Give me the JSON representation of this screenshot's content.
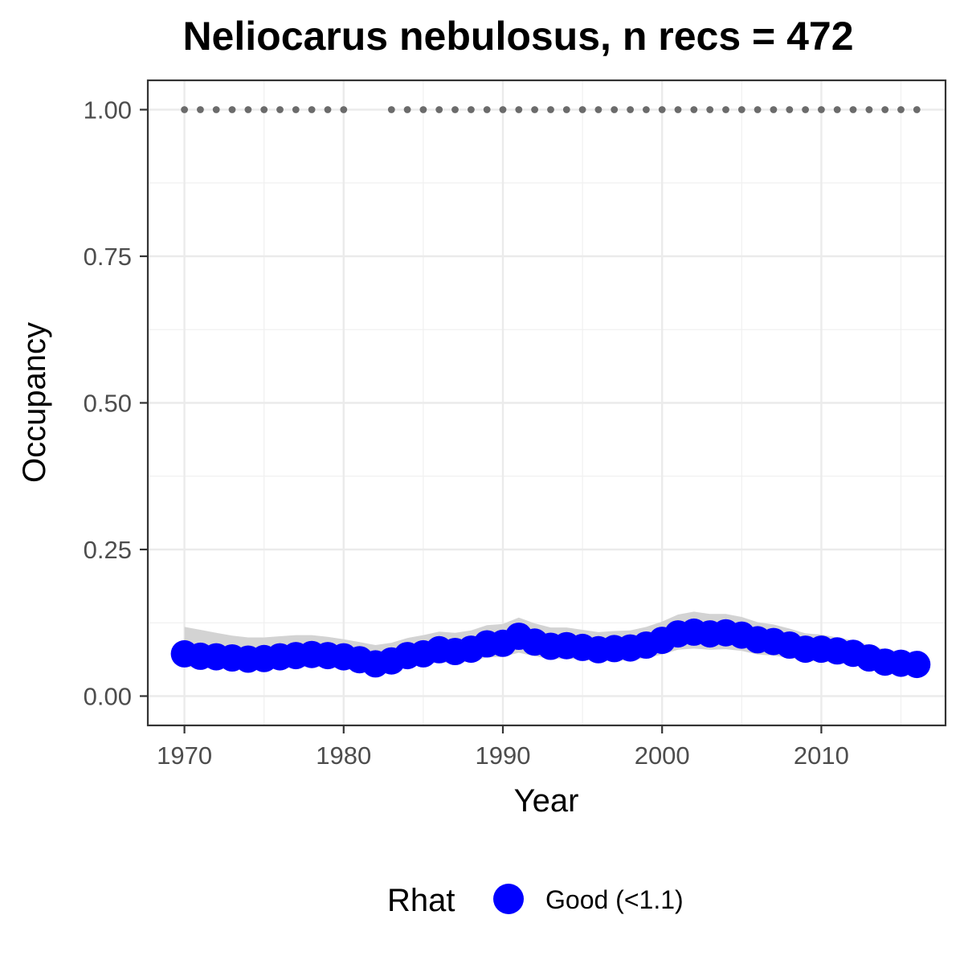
{
  "chart_data": {
    "type": "line",
    "title": "Neliocarus nebulosus, n recs = 472",
    "xlabel": "Year",
    "ylabel": "Occupancy",
    "xlim": [
      1967.7,
      2017.8
    ],
    "ylim": [
      -0.05,
      1.05
    ],
    "x_ticks": [
      1970,
      1980,
      1990,
      2000,
      2010
    ],
    "x_tick_labels": [
      "1970",
      "1980",
      "1990",
      "2000",
      "2010"
    ],
    "y_ticks": [
      0.0,
      0.25,
      0.5,
      0.75,
      1.0
    ],
    "y_tick_labels": [
      "0.00",
      "0.25",
      "0.50",
      "0.75",
      "1.00"
    ],
    "grid": true,
    "legend": {
      "title": "Rhat",
      "position": "bottom",
      "entries": [
        {
          "label": "Good (<1.1)",
          "color": "#0000ff"
        }
      ]
    },
    "series": [
      {
        "name": "Good (<1.1)",
        "color": "#0000ff",
        "x": [
          1970,
          1971,
          1972,
          1973,
          1974,
          1975,
          1976,
          1977,
          1978,
          1979,
          1980,
          1981,
          1982,
          1983,
          1984,
          1985,
          1986,
          1987,
          1988,
          1989,
          1990,
          1991,
          1992,
          1993,
          1994,
          1995,
          1996,
          1997,
          1998,
          1999,
          2000,
          2001,
          2002,
          2003,
          2004,
          2005,
          2006,
          2007,
          2008,
          2009,
          2010,
          2011,
          2012,
          2013,
          2014,
          2015,
          2016
        ],
        "y": [
          0.072,
          0.068,
          0.067,
          0.065,
          0.063,
          0.064,
          0.067,
          0.069,
          0.071,
          0.069,
          0.067,
          0.062,
          0.055,
          0.06,
          0.069,
          0.072,
          0.079,
          0.076,
          0.08,
          0.089,
          0.09,
          0.102,
          0.092,
          0.085,
          0.086,
          0.083,
          0.079,
          0.081,
          0.082,
          0.087,
          0.095,
          0.106,
          0.109,
          0.106,
          0.108,
          0.104,
          0.096,
          0.093,
          0.087,
          0.08,
          0.08,
          0.077,
          0.073,
          0.065,
          0.058,
          0.056,
          0.054
        ],
        "lower": [
          0.05,
          0.048,
          0.047,
          0.046,
          0.045,
          0.045,
          0.047,
          0.049,
          0.05,
          0.049,
          0.047,
          0.043,
          0.04,
          0.044,
          0.05,
          0.053,
          0.058,
          0.056,
          0.059,
          0.066,
          0.067,
          0.074,
          0.068,
          0.063,
          0.064,
          0.062,
          0.059,
          0.06,
          0.061,
          0.065,
          0.071,
          0.079,
          0.081,
          0.079,
          0.08,
          0.077,
          0.071,
          0.069,
          0.065,
          0.06,
          0.059,
          0.057,
          0.054,
          0.048,
          0.043,
          0.041,
          0.04
        ],
        "upper": [
          0.118,
          0.113,
          0.108,
          0.103,
          0.1,
          0.1,
          0.102,
          0.104,
          0.104,
          0.101,
          0.097,
          0.092,
          0.087,
          0.091,
          0.099,
          0.104,
          0.11,
          0.108,
          0.112,
          0.121,
          0.123,
          0.134,
          0.124,
          0.117,
          0.117,
          0.113,
          0.109,
          0.111,
          0.112,
          0.118,
          0.127,
          0.139,
          0.144,
          0.14,
          0.14,
          0.135,
          0.126,
          0.122,
          0.115,
          0.107,
          0.105,
          0.1,
          0.095,
          0.087,
          0.08,
          0.076,
          0.073
        ]
      }
    ],
    "top_points": {
      "color": "#6b6b6b",
      "y": 1.0,
      "x": [
        1970,
        1971,
        1972,
        1973,
        1974,
        1975,
        1976,
        1977,
        1978,
        1979,
        1980,
        1983,
        1984,
        1985,
        1986,
        1987,
        1988,
        1989,
        1990,
        1991,
        1992,
        1993,
        1994,
        1995,
        1996,
        1997,
        1998,
        1999,
        2000,
        2001,
        2002,
        2003,
        2004,
        2005,
        2006,
        2007,
        2008,
        2009,
        2010,
        2011,
        2012,
        2013,
        2014,
        2015,
        2016
      ]
    },
    "ribbon_color": "#d3d3d3"
  }
}
